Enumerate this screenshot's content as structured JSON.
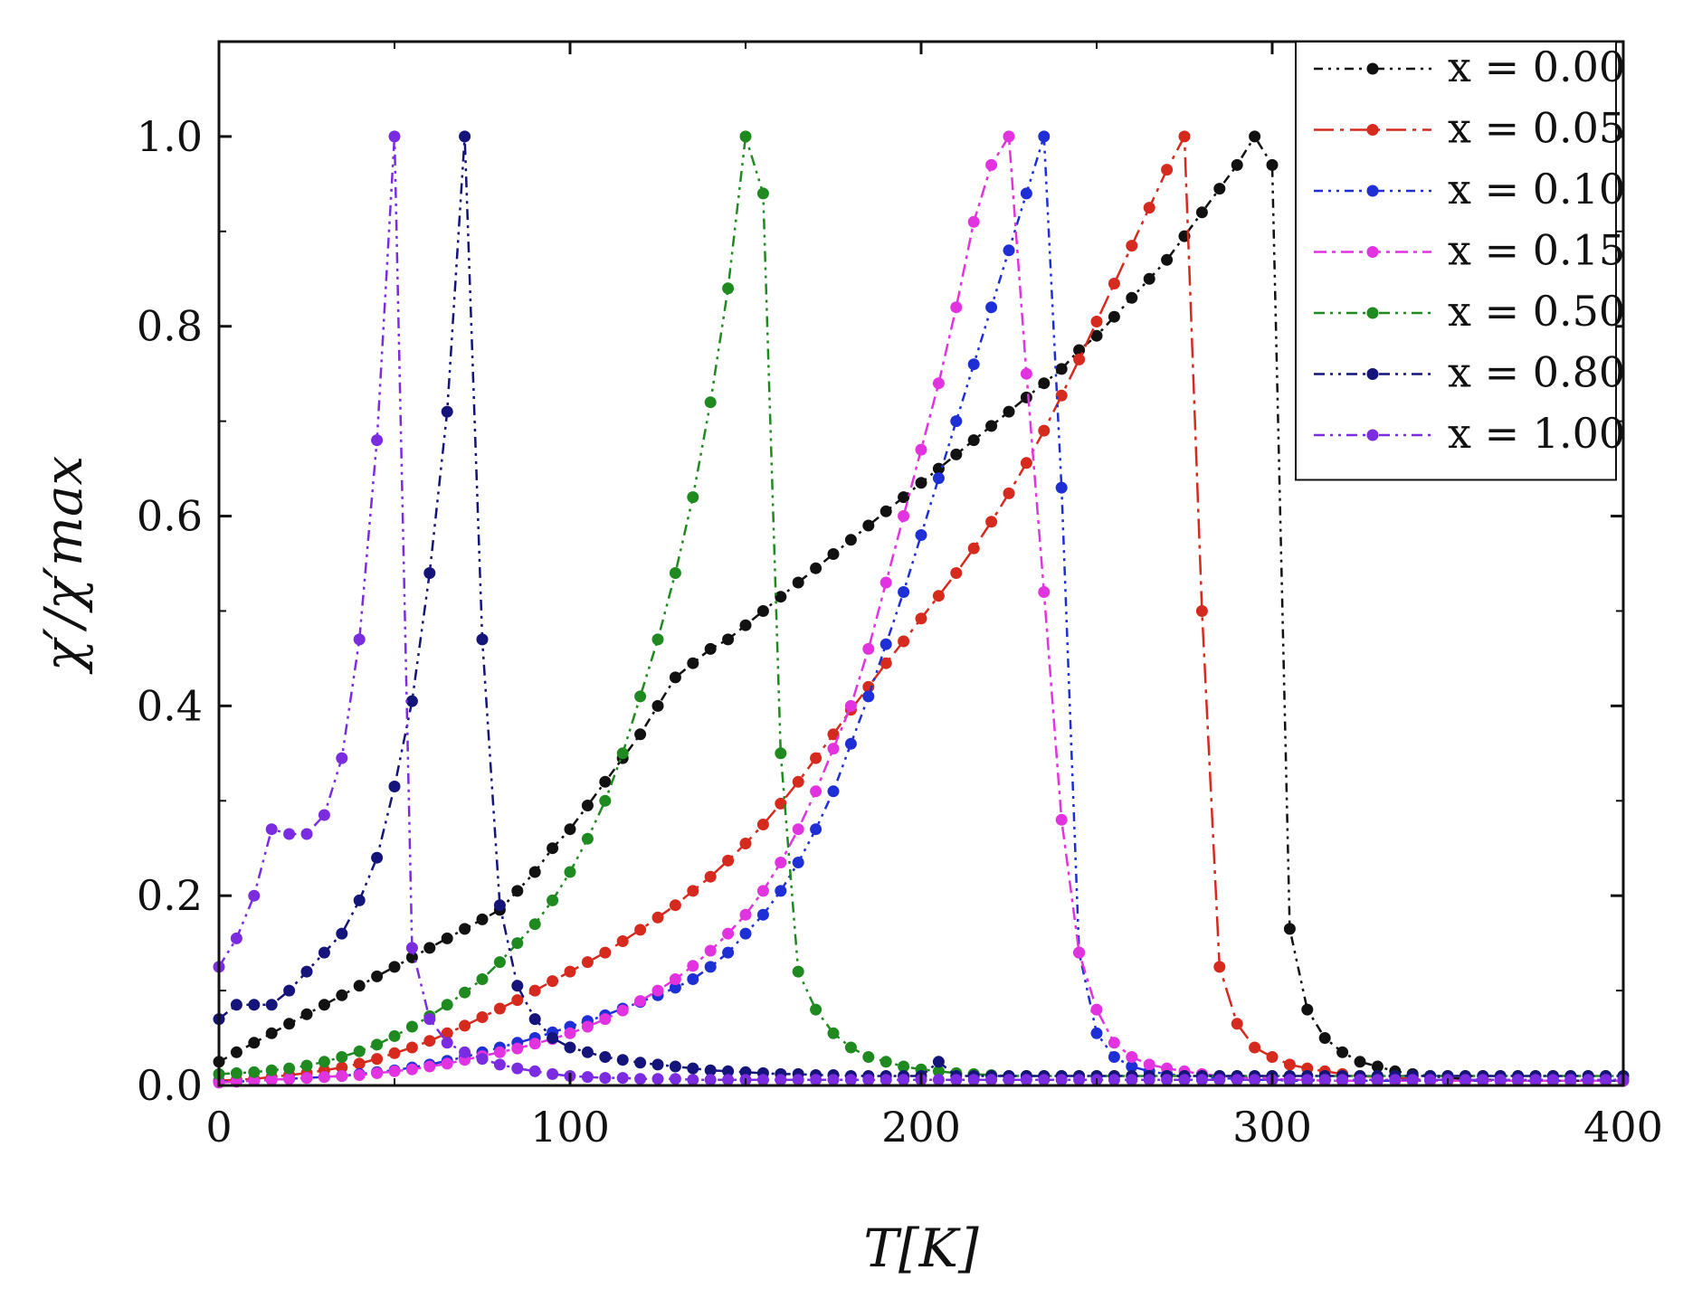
{
  "chart_data": {
    "type": "line",
    "title": "",
    "xlabel": "T[K]",
    "ylabel": "χ′/χ′max",
    "xlim": [
      0,
      400
    ],
    "ylim": [
      0,
      1.1
    ],
    "xticks": [
      "0",
      "100",
      "200",
      "300",
      "400"
    ],
    "yticks": [
      "0.0",
      "0.2",
      "0.4",
      "0.6",
      "0.8",
      "1.0"
    ],
    "xtick_values": [
      0,
      100,
      200,
      300,
      400
    ],
    "ytick_values": [
      0,
      0.2,
      0.4,
      0.6,
      0.8,
      1.0
    ],
    "legend_position": "top-right",
    "grid": false,
    "series": [
      {
        "name": "x = 0.00",
        "color": "#111111",
        "dash": "short-dash-dot-dot",
        "x": [
          0,
          5,
          10,
          15,
          20,
          25,
          30,
          35,
          40,
          45,
          50,
          55,
          60,
          65,
          70,
          75,
          80,
          85,
          90,
          95,
          100,
          105,
          110,
          115,
          120,
          125,
          130,
          135,
          140,
          145,
          150,
          155,
          160,
          165,
          170,
          175,
          180,
          185,
          190,
          195,
          200,
          205,
          210,
          215,
          220,
          225,
          230,
          235,
          240,
          245,
          250,
          255,
          260,
          265,
          270,
          275,
          280,
          285,
          290,
          295,
          300,
          305,
          310,
          315,
          320,
          325,
          330,
          335,
          340,
          345,
          350,
          355,
          360,
          365,
          370,
          375,
          380,
          385,
          390,
          395,
          400
        ],
        "y": [
          0.025,
          0.035,
          0.045,
          0.055,
          0.065,
          0.075,
          0.085,
          0.095,
          0.105,
          0.115,
          0.125,
          0.135,
          0.145,
          0.155,
          0.165,
          0.175,
          0.185,
          0.205,
          0.225,
          0.25,
          0.27,
          0.295,
          0.32,
          0.345,
          0.37,
          0.4,
          0.43,
          0.445,
          0.46,
          0.47,
          0.485,
          0.5,
          0.515,
          0.53,
          0.545,
          0.56,
          0.575,
          0.59,
          0.605,
          0.62,
          0.635,
          0.65,
          0.665,
          0.68,
          0.695,
          0.71,
          0.725,
          0.74,
          0.755,
          0.775,
          0.79,
          0.81,
          0.83,
          0.85,
          0.87,
          0.895,
          0.92,
          0.945,
          0.97,
          1.0,
          0.97,
          0.165,
          0.08,
          0.05,
          0.035,
          0.025,
          0.02,
          0.015,
          0.012,
          0.01,
          0.008,
          0.007,
          0.006,
          0.006,
          0.005,
          0.005,
          0.005,
          0.005,
          0.005,
          0.005,
          0.005
        ]
      },
      {
        "name": "x = 0.05",
        "color": "#d62a1e",
        "dash": "long-dash-dot",
        "x": [
          0,
          5,
          10,
          15,
          20,
          25,
          30,
          35,
          40,
          45,
          50,
          55,
          60,
          65,
          70,
          75,
          80,
          85,
          90,
          95,
          100,
          105,
          110,
          115,
          120,
          125,
          130,
          135,
          140,
          145,
          150,
          155,
          160,
          165,
          170,
          175,
          180,
          185,
          190,
          195,
          200,
          205,
          210,
          215,
          220,
          225,
          230,
          235,
          240,
          245,
          250,
          255,
          260,
          265,
          270,
          275,
          280,
          285,
          290,
          295,
          300,
          305,
          310,
          315,
          320,
          325,
          330,
          335,
          340,
          345,
          350,
          355,
          360,
          365,
          370,
          375,
          380,
          385,
          390,
          395,
          400
        ],
        "y": [
          0.005,
          0.006,
          0.007,
          0.009,
          0.011,
          0.013,
          0.016,
          0.019,
          0.023,
          0.028,
          0.034,
          0.04,
          0.047,
          0.055,
          0.063,
          0.072,
          0.081,
          0.09,
          0.1,
          0.11,
          0.12,
          0.13,
          0.14,
          0.152,
          0.164,
          0.177,
          0.19,
          0.205,
          0.22,
          0.237,
          0.255,
          0.275,
          0.297,
          0.32,
          0.345,
          0.37,
          0.396,
          0.42,
          0.445,
          0.468,
          0.492,
          0.516,
          0.54,
          0.566,
          0.594,
          0.624,
          0.656,
          0.69,
          0.727,
          0.765,
          0.805,
          0.845,
          0.885,
          0.925,
          0.965,
          1.0,
          0.5,
          0.125,
          0.065,
          0.04,
          0.03,
          0.022,
          0.018,
          0.015,
          0.012,
          0.01,
          0.009,
          0.008,
          0.007,
          0.006,
          0.006,
          0.005,
          0.005,
          0.005,
          0.005,
          0.005,
          0.005,
          0.005,
          0.005,
          0.005,
          0.005
        ]
      },
      {
        "name": "x = 0.10",
        "color": "#1f2fd6",
        "dash": "short-dash-dot-dot",
        "x": [
          0,
          5,
          10,
          15,
          20,
          25,
          30,
          35,
          40,
          45,
          50,
          55,
          60,
          65,
          70,
          75,
          80,
          85,
          90,
          95,
          100,
          105,
          110,
          115,
          120,
          125,
          130,
          135,
          140,
          145,
          150,
          155,
          160,
          165,
          170,
          175,
          180,
          185,
          190,
          195,
          200,
          205,
          210,
          215,
          220,
          225,
          230,
          235,
          240,
          245,
          250,
          255,
          260,
          265,
          270,
          275,
          280,
          285,
          290,
          295,
          300,
          305,
          310,
          315,
          320,
          325,
          330,
          335,
          340,
          345,
          350,
          355,
          360,
          365,
          370,
          375,
          380,
          385,
          390,
          395,
          400
        ],
        "y": [
          0.004,
          0.004,
          0.005,
          0.006,
          0.007,
          0.008,
          0.009,
          0.01,
          0.012,
          0.014,
          0.016,
          0.019,
          0.022,
          0.026,
          0.03,
          0.035,
          0.04,
          0.045,
          0.05,
          0.056,
          0.062,
          0.068,
          0.074,
          0.081,
          0.088,
          0.095,
          0.103,
          0.112,
          0.125,
          0.14,
          0.16,
          0.18,
          0.205,
          0.235,
          0.27,
          0.31,
          0.36,
          0.41,
          0.465,
          0.52,
          0.58,
          0.64,
          0.7,
          0.76,
          0.82,
          0.88,
          0.94,
          1.0,
          0.63,
          0.14,
          0.055,
          0.03,
          0.02,
          0.015,
          0.012,
          0.01,
          0.009,
          0.008,
          0.007,
          0.006,
          0.006,
          0.005,
          0.005,
          0.005,
          0.005,
          0.005,
          0.005,
          0.005,
          0.005,
          0.005,
          0.005,
          0.005,
          0.005,
          0.005,
          0.005,
          0.005,
          0.005,
          0.005,
          0.005,
          0.005,
          0.005
        ]
      },
      {
        "name": "x = 0.15",
        "color": "#e233e0",
        "dash": "dash-dot",
        "x": [
          0,
          5,
          10,
          15,
          20,
          25,
          30,
          35,
          40,
          45,
          50,
          55,
          60,
          65,
          70,
          75,
          80,
          85,
          90,
          95,
          100,
          105,
          110,
          115,
          120,
          125,
          130,
          135,
          140,
          145,
          150,
          155,
          160,
          165,
          170,
          175,
          180,
          185,
          190,
          195,
          200,
          205,
          210,
          215,
          220,
          225,
          230,
          235,
          240,
          245,
          250,
          255,
          260,
          265,
          270,
          275,
          280,
          285,
          290,
          295,
          300,
          305,
          310,
          315,
          320,
          325,
          330,
          335,
          340,
          345,
          350,
          355,
          360,
          365,
          370,
          375,
          380,
          385,
          390,
          395,
          400
        ],
        "y": [
          0.003,
          0.004,
          0.005,
          0.006,
          0.007,
          0.008,
          0.009,
          0.01,
          0.011,
          0.013,
          0.015,
          0.017,
          0.02,
          0.023,
          0.027,
          0.031,
          0.035,
          0.039,
          0.044,
          0.049,
          0.055,
          0.062,
          0.07,
          0.079,
          0.089,
          0.1,
          0.112,
          0.126,
          0.142,
          0.16,
          0.18,
          0.205,
          0.235,
          0.27,
          0.31,
          0.355,
          0.4,
          0.46,
          0.53,
          0.6,
          0.67,
          0.74,
          0.82,
          0.91,
          0.97,
          1.0,
          0.75,
          0.52,
          0.28,
          0.14,
          0.08,
          0.045,
          0.03,
          0.022,
          0.018,
          0.015,
          0.012,
          0.01,
          0.009,
          0.008,
          0.007,
          0.006,
          0.006,
          0.005,
          0.005,
          0.005,
          0.005,
          0.005,
          0.005,
          0.005,
          0.005,
          0.005,
          0.005,
          0.005,
          0.005,
          0.005,
          0.005,
          0.005,
          0.005,
          0.005,
          0.005
        ]
      },
      {
        "name": "x = 0.50",
        "color": "#1f8a1f",
        "dash": "dash-dot-dot",
        "x": [
          0,
          5,
          10,
          15,
          20,
          25,
          30,
          35,
          40,
          45,
          50,
          55,
          60,
          65,
          70,
          75,
          80,
          85,
          90,
          95,
          100,
          105,
          110,
          115,
          120,
          125,
          130,
          135,
          140,
          145,
          150,
          155,
          160,
          165,
          170,
          175,
          180,
          185,
          190,
          195,
          200,
          205,
          210,
          215,
          220,
          225,
          230,
          235,
          240,
          245,
          250,
          255,
          260,
          265,
          270,
          275,
          280,
          285,
          290,
          295,
          300,
          305,
          310,
          315,
          320,
          325,
          330,
          335,
          340,
          345,
          350,
          355,
          360,
          365,
          370,
          375,
          380,
          385,
          390,
          395,
          400
        ],
        "y": [
          0.012,
          0.013,
          0.014,
          0.016,
          0.018,
          0.021,
          0.025,
          0.03,
          0.036,
          0.043,
          0.052,
          0.062,
          0.073,
          0.085,
          0.098,
          0.112,
          0.13,
          0.15,
          0.17,
          0.195,
          0.225,
          0.26,
          0.3,
          0.35,
          0.41,
          0.47,
          0.54,
          0.62,
          0.72,
          0.84,
          1.0,
          0.94,
          0.35,
          0.12,
          0.08,
          0.055,
          0.04,
          0.03,
          0.025,
          0.02,
          0.017,
          0.015,
          0.013,
          0.012,
          0.011,
          0.01,
          0.01,
          0.01,
          0.01,
          0.01,
          0.01,
          0.01,
          0.01,
          0.01,
          0.01,
          0.01,
          0.01,
          0.01,
          0.01,
          0.01,
          0.01,
          0.01,
          0.01,
          0.01,
          0.01,
          0.01,
          0.01,
          0.01,
          0.01,
          0.01,
          0.01,
          0.01,
          0.01,
          0.01,
          0.01,
          0.01,
          0.01,
          0.01,
          0.01,
          0.01,
          0.01
        ]
      },
      {
        "name": "x = 0.80",
        "color": "#14147a",
        "dash": "dash-dot-dot",
        "x": [
          0,
          5,
          10,
          15,
          20,
          25,
          30,
          35,
          40,
          45,
          50,
          55,
          60,
          65,
          70,
          75,
          80,
          85,
          90,
          95,
          100,
          105,
          110,
          115,
          120,
          125,
          130,
          135,
          140,
          145,
          150,
          155,
          160,
          165,
          170,
          175,
          180,
          185,
          190,
          195,
          200,
          205,
          210,
          215,
          220,
          225,
          230,
          235,
          240,
          245,
          250,
          255,
          260,
          265,
          270,
          275,
          280,
          285,
          290,
          295,
          300,
          305,
          310,
          315,
          320,
          325,
          330,
          335,
          340,
          345,
          350,
          355,
          360,
          365,
          370,
          375,
          380,
          385,
          390,
          395,
          400
        ],
        "y": [
          0.07,
          0.085,
          0.085,
          0.085,
          0.1,
          0.12,
          0.14,
          0.16,
          0.195,
          0.24,
          0.315,
          0.405,
          0.54,
          0.71,
          1.0,
          0.47,
          0.19,
          0.105,
          0.07,
          0.05,
          0.04,
          0.035,
          0.03,
          0.027,
          0.024,
          0.022,
          0.02,
          0.018,
          0.016,
          0.015,
          0.014,
          0.013,
          0.012,
          0.012,
          0.011,
          0.011,
          0.01,
          0.01,
          0.01,
          0.01,
          0.01,
          0.025,
          0.01,
          0.01,
          0.01,
          0.01,
          0.01,
          0.01,
          0.01,
          0.01,
          0.01,
          0.01,
          0.01,
          0.01,
          0.01,
          0.01,
          0.01,
          0.01,
          0.01,
          0.01,
          0.01,
          0.01,
          0.01,
          0.01,
          0.01,
          0.01,
          0.01,
          0.01,
          0.01,
          0.01,
          0.01,
          0.01,
          0.01,
          0.01,
          0.01,
          0.01,
          0.01,
          0.01,
          0.01,
          0.01,
          0.01
        ]
      },
      {
        "name": "x = 1.00",
        "color": "#7b2be0",
        "dash": "dash-dot-dot",
        "x": [
          0,
          5,
          10,
          15,
          20,
          25,
          30,
          35,
          40,
          45,
          50,
          55,
          60,
          65,
          70,
          75,
          80,
          85,
          90,
          95,
          100,
          105,
          110,
          115,
          120,
          125,
          130,
          135,
          140,
          145,
          150,
          155,
          160,
          165,
          170,
          175,
          180,
          185,
          190,
          195,
          200,
          205,
          210,
          215,
          220,
          225,
          230,
          235,
          240,
          245,
          250,
          255,
          260,
          265,
          270,
          275,
          280,
          285,
          290,
          295,
          300,
          305,
          310,
          315,
          320,
          325,
          330,
          335,
          340,
          345,
          350,
          355,
          360,
          365,
          370,
          375,
          380,
          385,
          390,
          395,
          400
        ],
        "y": [
          0.125,
          0.155,
          0.2,
          0.27,
          0.265,
          0.265,
          0.285,
          0.345,
          0.47,
          0.68,
          1.0,
          0.145,
          0.07,
          0.045,
          0.035,
          0.028,
          0.022,
          0.018,
          0.015,
          0.012,
          0.01,
          0.009,
          0.008,
          0.008,
          0.007,
          0.007,
          0.007,
          0.006,
          0.006,
          0.006,
          0.006,
          0.006,
          0.006,
          0.006,
          0.006,
          0.006,
          0.006,
          0.006,
          0.006,
          0.006,
          0.006,
          0.006,
          0.006,
          0.006,
          0.006,
          0.006,
          0.006,
          0.006,
          0.006,
          0.006,
          0.006,
          0.006,
          0.006,
          0.006,
          0.006,
          0.006,
          0.006,
          0.006,
          0.006,
          0.006,
          0.006,
          0.006,
          0.006,
          0.006,
          0.006,
          0.006,
          0.006,
          0.006,
          0.006,
          0.006,
          0.006,
          0.006,
          0.006,
          0.006,
          0.006,
          0.006,
          0.006,
          0.006,
          0.006,
          0.006,
          0.006
        ]
      }
    ]
  }
}
